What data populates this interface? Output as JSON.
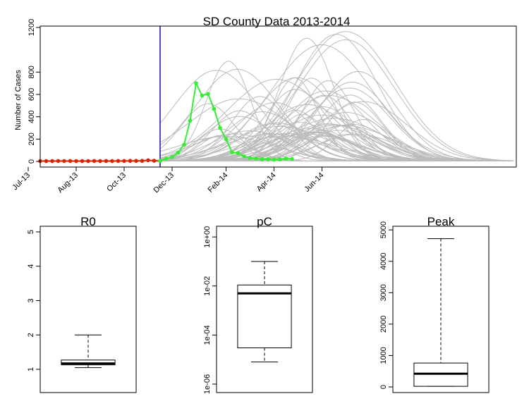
{
  "chart_data": [
    {
      "type": "line",
      "title": "SD County Data 2013-2014",
      "ylabel": "Number of Cases",
      "xlabel": "",
      "ylim": [
        0,
        1200
      ],
      "y_ticks": [
        "0",
        "200",
        "400",
        "600",
        "800",
        "1200"
      ],
      "x_ticks": [
        "Jul-13",
        "Aug-13",
        "Oct-13",
        "Dec-13",
        "Feb-14",
        "Apr-14",
        "Jun-14"
      ],
      "x_tick_weeks": [
        0,
        8,
        16,
        24,
        33,
        41,
        49
      ],
      "vertical_line_week": 22,
      "colors": {
        "observed": "#dd2200",
        "forecast_data": "#33ee33",
        "simulations": "#bbbbbb",
        "vline": "#2222aa"
      },
      "series": [
        {
          "role": "observed",
          "weeks": [
            2,
            3,
            4,
            5,
            6,
            7,
            8,
            9,
            10,
            11,
            12,
            13,
            14,
            15,
            16,
            17,
            18,
            19,
            20,
            21,
            22
          ],
          "values": [
            3,
            3,
            3,
            4,
            3,
            4,
            3,
            3,
            3,
            4,
            3,
            4,
            3,
            4,
            4,
            5,
            5,
            5,
            10,
            6,
            4
          ]
        },
        {
          "role": "forecast_data",
          "weeks": [
            22,
            23,
            24,
            25,
            26,
            27,
            28,
            29,
            30,
            31,
            32,
            33,
            34,
            35,
            36,
            37,
            38,
            39,
            40,
            41,
            42,
            43,
            44
          ],
          "values": [
            5,
            25,
            40,
            80,
            150,
            365,
            700,
            590,
            605,
            470,
            300,
            200,
            80,
            75,
            45,
            30,
            25,
            20,
            20,
            15,
            18,
            25,
            22
          ]
        }
      ]
    },
    {
      "type": "boxplot",
      "title": "R0",
      "y_ticks": [
        "1",
        "2",
        "3",
        "4",
        "5"
      ],
      "ylim": [
        0.4,
        5.2
      ],
      "whisker_low": 1.05,
      "q1": 1.13,
      "median": 1.17,
      "q3": 1.27,
      "whisker_high": 2.0
    },
    {
      "type": "boxplot",
      "title": "pC",
      "scale": "log",
      "y_ticks": [
        "1e-06",
        "1e-04",
        "1e-02",
        "1e+00"
      ],
      "ylim": [
        1e-06,
        1.4
      ],
      "whisker_low": 8e-06,
      "q1": 3e-05,
      "median": 0.005,
      "q3": 0.011,
      "whisker_high": 0.1
    },
    {
      "type": "boxplot",
      "title": "Peak",
      "y_ticks": [
        "0",
        "1000",
        "2000",
        "3000",
        "4000",
        "5000"
      ],
      "ylim": [
        -120,
        5200
      ],
      "whisker_low": 20,
      "q1": 20,
      "median": 420,
      "q3": 760,
      "whisker_high": 4720
    }
  ]
}
